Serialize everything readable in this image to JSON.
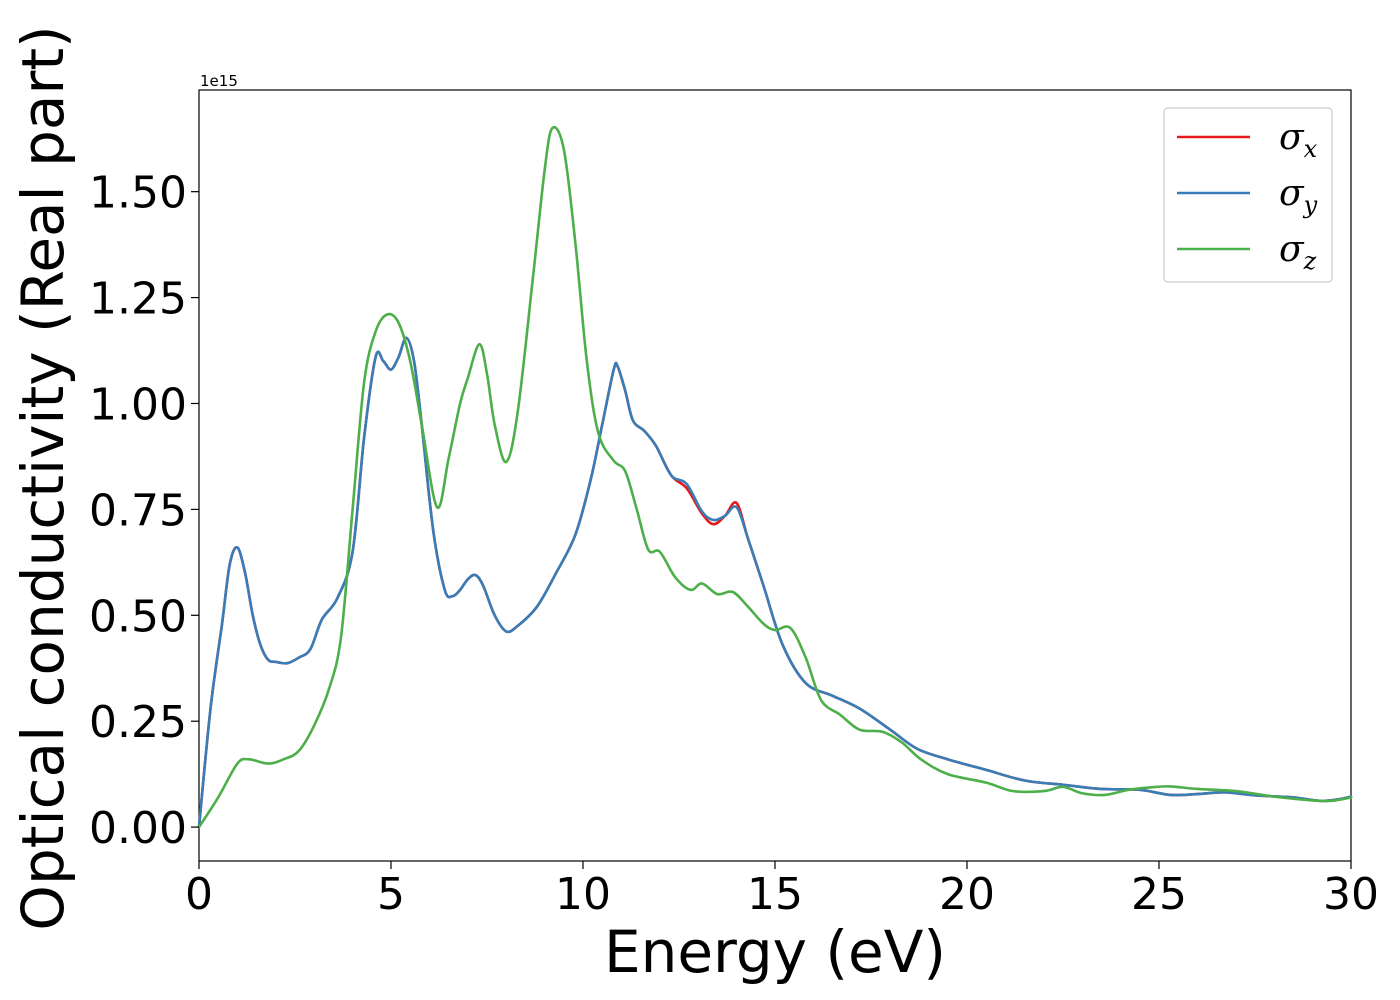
{
  "chart_data": {
    "type": "line",
    "xlabel": "Energy (eV)",
    "ylabel": "Optical conductivity (Real part)",
    "y_offset_label": "1e15",
    "xlim": [
      0,
      30
    ],
    "ylim": [
      -0.08,
      1.74
    ],
    "x_ticks": [
      0,
      5,
      10,
      15,
      20,
      25,
      30
    ],
    "x_tick_labels": [
      "0",
      "5",
      "10",
      "15",
      "20",
      "25",
      "30"
    ],
    "y_ticks": [
      0,
      0.25,
      0.5,
      0.75,
      1.0,
      1.25,
      1.5
    ],
    "y_tick_labels": [
      "0.00",
      "0.25",
      "0.50",
      "0.75",
      "1.00",
      "1.25",
      "1.50"
    ],
    "grid": false,
    "legend_position": "top-right",
    "series": [
      {
        "name": "σx",
        "legend_base": "σ",
        "legend_sub": "x",
        "color": "#e41a1c",
        "points": [
          [
            0,
            0
          ],
          [
            0.3,
            0.28
          ],
          [
            0.6,
            0.48
          ],
          [
            0.8,
            0.62
          ],
          [
            1.0,
            0.66
          ],
          [
            1.2,
            0.6
          ],
          [
            1.4,
            0.5
          ],
          [
            1.6,
            0.43
          ],
          [
            1.8,
            0.395
          ],
          [
            2.0,
            0.39
          ],
          [
            2.3,
            0.387
          ],
          [
            2.6,
            0.4
          ],
          [
            2.9,
            0.42
          ],
          [
            3.2,
            0.49
          ],
          [
            3.6,
            0.54
          ],
          [
            4.0,
            0.65
          ],
          [
            4.3,
            0.92
          ],
          [
            4.6,
            1.11
          ],
          [
            4.8,
            1.1
          ],
          [
            5.0,
            1.08
          ],
          [
            5.2,
            1.11
          ],
          [
            5.4,
            1.155
          ],
          [
            5.6,
            1.1
          ],
          [
            5.8,
            0.95
          ],
          [
            6.1,
            0.7
          ],
          [
            6.4,
            0.56
          ],
          [
            6.6,
            0.545
          ],
          [
            6.8,
            0.56
          ],
          [
            7.0,
            0.585
          ],
          [
            7.2,
            0.595
          ],
          [
            7.4,
            0.57
          ],
          [
            7.7,
            0.5
          ],
          [
            8.0,
            0.462
          ],
          [
            8.3,
            0.475
          ],
          [
            8.8,
            0.52
          ],
          [
            9.3,
            0.6
          ],
          [
            9.8,
            0.69
          ],
          [
            10.2,
            0.82
          ],
          [
            10.5,
            0.95
          ],
          [
            10.8,
            1.08
          ],
          [
            10.9,
            1.088
          ],
          [
            11.1,
            1.03
          ],
          [
            11.3,
            0.96
          ],
          [
            11.6,
            0.935
          ],
          [
            11.9,
            0.9
          ],
          [
            12.3,
            0.83
          ],
          [
            12.7,
            0.8
          ],
          [
            13.1,
            0.74
          ],
          [
            13.4,
            0.715
          ],
          [
            13.7,
            0.735
          ],
          [
            14.0,
            0.765
          ],
          [
            14.3,
            0.68
          ],
          [
            14.7,
            0.57
          ],
          [
            15.2,
            0.43
          ],
          [
            15.8,
            0.34
          ],
          [
            16.5,
            0.31
          ],
          [
            17.2,
            0.28
          ],
          [
            18.0,
            0.23
          ],
          [
            18.7,
            0.185
          ],
          [
            19.5,
            0.16
          ],
          [
            20.5,
            0.135
          ],
          [
            21.5,
            0.11
          ],
          [
            22.5,
            0.1
          ],
          [
            23.5,
            0.09
          ],
          [
            24.5,
            0.088
          ],
          [
            25.3,
            0.076
          ],
          [
            26.0,
            0.078
          ],
          [
            26.7,
            0.082
          ],
          [
            27.5,
            0.075
          ],
          [
            28.5,
            0.07
          ],
          [
            29.2,
            0.062
          ],
          [
            29.7,
            0.066
          ],
          [
            30.0,
            0.072
          ]
        ]
      },
      {
        "name": "σy",
        "legend_base": "σ",
        "legend_sub": "y",
        "color": "#377eb8",
        "points": [
          [
            0,
            0
          ],
          [
            0.3,
            0.28
          ],
          [
            0.6,
            0.48
          ],
          [
            0.8,
            0.62
          ],
          [
            1.0,
            0.66
          ],
          [
            1.2,
            0.6
          ],
          [
            1.4,
            0.5
          ],
          [
            1.6,
            0.43
          ],
          [
            1.8,
            0.395
          ],
          [
            2.0,
            0.39
          ],
          [
            2.3,
            0.387
          ],
          [
            2.6,
            0.4
          ],
          [
            2.9,
            0.42
          ],
          [
            3.2,
            0.49
          ],
          [
            3.6,
            0.54
          ],
          [
            4.0,
            0.65
          ],
          [
            4.3,
            0.92
          ],
          [
            4.6,
            1.11
          ],
          [
            4.8,
            1.1
          ],
          [
            5.0,
            1.08
          ],
          [
            5.2,
            1.11
          ],
          [
            5.4,
            1.155
          ],
          [
            5.6,
            1.1
          ],
          [
            5.8,
            0.95
          ],
          [
            6.1,
            0.7
          ],
          [
            6.4,
            0.56
          ],
          [
            6.6,
            0.545
          ],
          [
            6.8,
            0.56
          ],
          [
            7.0,
            0.585
          ],
          [
            7.2,
            0.595
          ],
          [
            7.4,
            0.57
          ],
          [
            7.7,
            0.5
          ],
          [
            8.0,
            0.462
          ],
          [
            8.3,
            0.475
          ],
          [
            8.8,
            0.52
          ],
          [
            9.3,
            0.6
          ],
          [
            9.8,
            0.69
          ],
          [
            10.2,
            0.82
          ],
          [
            10.5,
            0.95
          ],
          [
            10.8,
            1.08
          ],
          [
            10.9,
            1.088
          ],
          [
            11.1,
            1.03
          ],
          [
            11.3,
            0.96
          ],
          [
            11.6,
            0.935
          ],
          [
            11.9,
            0.9
          ],
          [
            12.3,
            0.83
          ],
          [
            12.7,
            0.81
          ],
          [
            13.1,
            0.745
          ],
          [
            13.4,
            0.725
          ],
          [
            13.7,
            0.735
          ],
          [
            14.0,
            0.755
          ],
          [
            14.3,
            0.68
          ],
          [
            14.7,
            0.57
          ],
          [
            15.2,
            0.43
          ],
          [
            15.8,
            0.34
          ],
          [
            16.5,
            0.31
          ],
          [
            17.2,
            0.28
          ],
          [
            18.0,
            0.23
          ],
          [
            18.7,
            0.185
          ],
          [
            19.5,
            0.16
          ],
          [
            20.5,
            0.135
          ],
          [
            21.5,
            0.11
          ],
          [
            22.5,
            0.1
          ],
          [
            23.5,
            0.09
          ],
          [
            24.5,
            0.088
          ],
          [
            25.3,
            0.076
          ],
          [
            26.0,
            0.078
          ],
          [
            26.7,
            0.082
          ],
          [
            27.5,
            0.075
          ],
          [
            28.5,
            0.07
          ],
          [
            29.2,
            0.062
          ],
          [
            29.7,
            0.066
          ],
          [
            30.0,
            0.072
          ]
        ]
      },
      {
        "name": "σz",
        "legend_base": "σ",
        "legend_sub": "z",
        "color": "#4daf4a",
        "points": [
          [
            0,
            0
          ],
          [
            0.5,
            0.07
          ],
          [
            1.0,
            0.15
          ],
          [
            1.3,
            0.16
          ],
          [
            1.8,
            0.15
          ],
          [
            2.2,
            0.16
          ],
          [
            2.6,
            0.18
          ],
          [
            3.0,
            0.24
          ],
          [
            3.4,
            0.33
          ],
          [
            3.7,
            0.45
          ],
          [
            4.0,
            0.75
          ],
          [
            4.3,
            1.05
          ],
          [
            4.6,
            1.17
          ],
          [
            4.9,
            1.21
          ],
          [
            5.2,
            1.19
          ],
          [
            5.5,
            1.1
          ],
          [
            5.8,
            0.95
          ],
          [
            6.2,
            0.755
          ],
          [
            6.5,
            0.87
          ],
          [
            6.8,
            1.0
          ],
          [
            7.0,
            1.06
          ],
          [
            7.3,
            1.14
          ],
          [
            7.5,
            1.07
          ],
          [
            7.7,
            0.95
          ],
          [
            8.0,
            0.862
          ],
          [
            8.3,
            0.98
          ],
          [
            8.7,
            1.3
          ],
          [
            9.0,
            1.55
          ],
          [
            9.2,
            1.65
          ],
          [
            9.5,
            1.6
          ],
          [
            9.8,
            1.38
          ],
          [
            10.1,
            1.1
          ],
          [
            10.4,
            0.93
          ],
          [
            10.8,
            0.865
          ],
          [
            11.1,
            0.84
          ],
          [
            11.4,
            0.75
          ],
          [
            11.7,
            0.655
          ],
          [
            12.0,
            0.65
          ],
          [
            12.4,
            0.59
          ],
          [
            12.8,
            0.56
          ],
          [
            13.1,
            0.575
          ],
          [
            13.5,
            0.55
          ],
          [
            13.9,
            0.555
          ],
          [
            14.3,
            0.52
          ],
          [
            14.7,
            0.48
          ],
          [
            15.0,
            0.465
          ],
          [
            15.4,
            0.47
          ],
          [
            15.8,
            0.4
          ],
          [
            16.2,
            0.3
          ],
          [
            16.7,
            0.265
          ],
          [
            17.2,
            0.23
          ],
          [
            17.8,
            0.225
          ],
          [
            18.3,
            0.2
          ],
          [
            18.8,
            0.16
          ],
          [
            19.5,
            0.125
          ],
          [
            20.5,
            0.105
          ],
          [
            21.2,
            0.085
          ],
          [
            22.0,
            0.085
          ],
          [
            22.5,
            0.095
          ],
          [
            23.0,
            0.08
          ],
          [
            23.6,
            0.076
          ],
          [
            24.2,
            0.088
          ],
          [
            24.8,
            0.094
          ],
          [
            25.3,
            0.096
          ],
          [
            26.0,
            0.09
          ],
          [
            27.0,
            0.085
          ],
          [
            28.0,
            0.072
          ],
          [
            29.0,
            0.063
          ],
          [
            29.5,
            0.062
          ],
          [
            30.0,
            0.07
          ]
        ]
      }
    ]
  }
}
